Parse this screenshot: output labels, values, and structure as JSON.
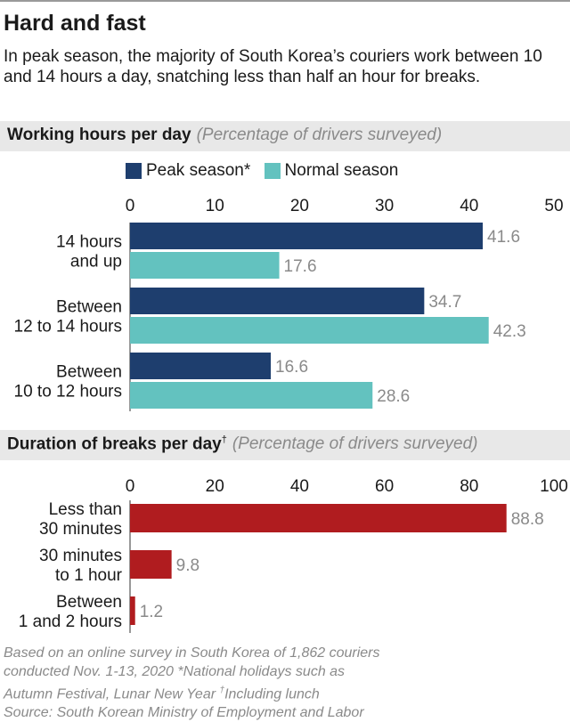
{
  "header": {
    "title": "Hard and fast",
    "subtitle": "In peak season, the majority of South Korea’s couriers work between 10 and 14 hours a day, snatching less than half an hour for breaks."
  },
  "chart_data": [
    {
      "type": "bar",
      "orientation": "horizontal",
      "title": "Working hours per day",
      "unit_note": "(Percentage of drivers surveyed)",
      "categories": [
        "14 hours and up",
        "Between 12 to 14 hours",
        "Between 10 to 12 hours"
      ],
      "category_lines": [
        [
          "14 hours",
          "and up"
        ],
        [
          "Between",
          "12 to 14 hours"
        ],
        [
          "Between",
          "10 to 12 hours"
        ]
      ],
      "series": [
        {
          "name": "Peak season*",
          "color": "#1e3e6e",
          "values": [
            41.6,
            34.7,
            16.6
          ]
        },
        {
          "name": "Normal season",
          "color": "#63c2bf",
          "values": [
            17.6,
            42.3,
            28.6
          ]
        }
      ],
      "xlim": [
        0,
        50
      ],
      "ticks": [
        0,
        10,
        20,
        30,
        40,
        50
      ],
      "legend": "top"
    },
    {
      "type": "bar",
      "orientation": "horizontal",
      "title": "Duration of breaks per day",
      "title_mark": "†",
      "unit_note": "(Percentage of drivers surveyed)",
      "categories": [
        "Less than 30 minutes",
        "30 minutes to 1 hour",
        "Between 1 and 2 hours"
      ],
      "category_lines": [
        [
          "Less than",
          "30 minutes"
        ],
        [
          "30 minutes",
          "to 1 hour"
        ],
        [
          "Between",
          "1 and 2 hours"
        ]
      ],
      "series": [
        {
          "name": "",
          "color": "#b01c1f",
          "values": [
            88.8,
            9.8,
            1.2
          ]
        }
      ],
      "xlim": [
        0,
        100
      ],
      "ticks": [
        0,
        20,
        40,
        60,
        80,
        100
      ]
    }
  ],
  "footnote": {
    "line1": "Based on an online survey in South Korea of 1,862 couriers",
    "line2": "conducted Nov. 1-13, 2020  *National holidays such as",
    "line3a": "Autumn Festival, Lunar New Year  ",
    "line3mark": "†",
    "line3b": "Including lunch",
    "line4": "Source: South Korean Ministry of Employment and Labor"
  }
}
